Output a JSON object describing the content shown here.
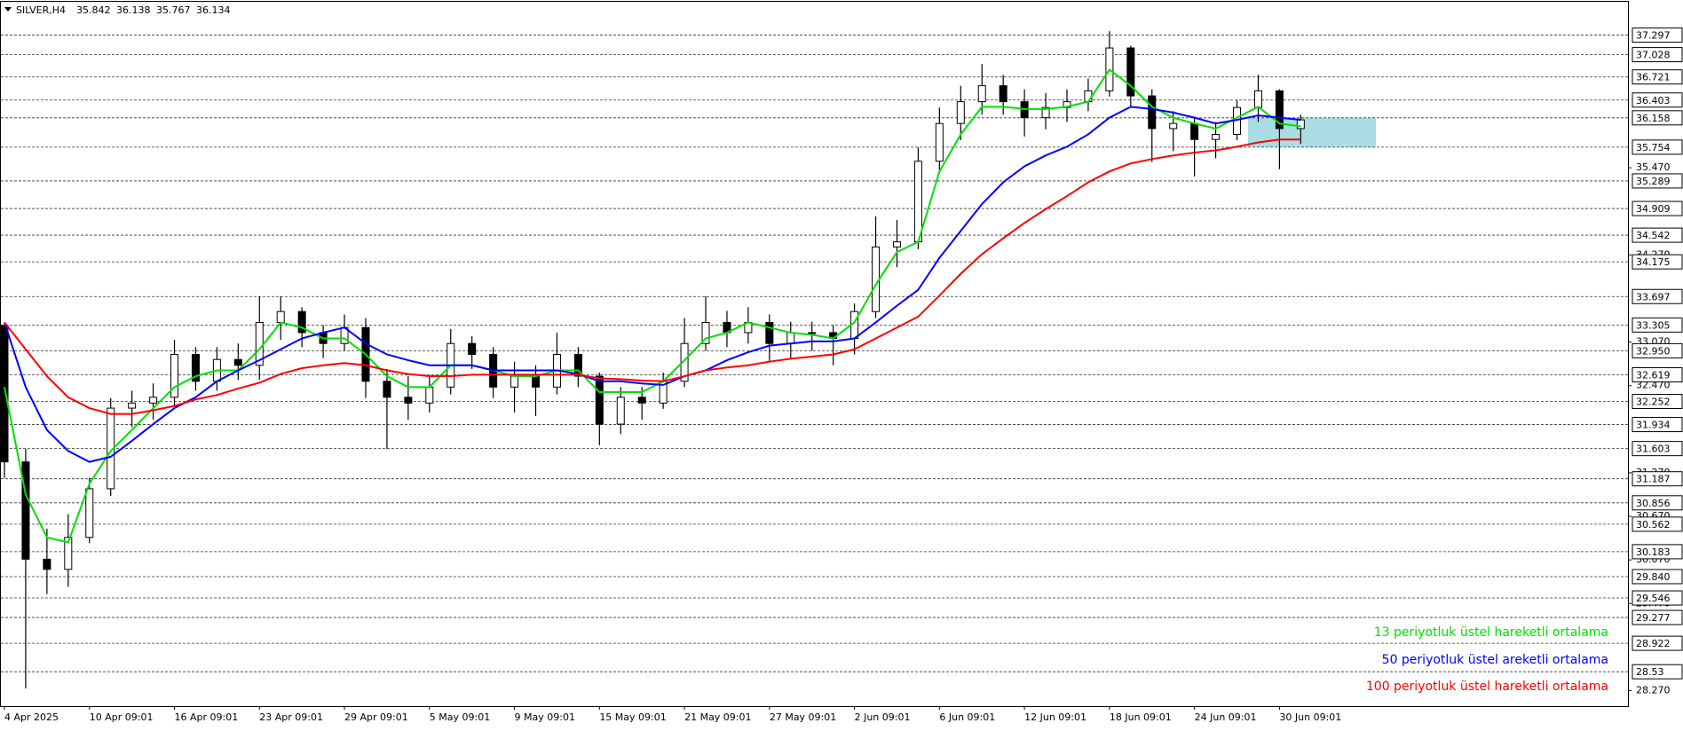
{
  "chart_data": {
    "type": "candlestick",
    "symbol": "SILVER,H4",
    "header_values": [
      35.842,
      36.138,
      35.767,
      36.134
    ],
    "categories": [
      "4 Apr 2025",
      null,
      null,
      null,
      "10 Apr 09:01",
      null,
      null,
      null,
      "16 Apr 09:01",
      null,
      null,
      null,
      "23 Apr 09:01",
      null,
      null,
      null,
      "29 Apr 09:01",
      null,
      null,
      null,
      "5 May 09:01",
      null,
      null,
      null,
      "9 May 09:01",
      null,
      null,
      null,
      "15 May 09:01",
      null,
      null,
      null,
      "21 May 09:01",
      null,
      null,
      null,
      "27 May 09:01",
      null,
      null,
      null,
      "2 Jun 09:01",
      null,
      null,
      null,
      "6 Jun 09:01",
      null,
      null,
      null,
      "12 Jun 09:01",
      null,
      null,
      null,
      "18 Jun 09:01",
      null,
      null,
      null,
      "24 Jun 09:01",
      null,
      null,
      null,
      "30 Jun 09:01",
      null
    ],
    "open": [
      33.3,
      31.42,
      30.08,
      29.94,
      30.38,
      31.05,
      32.16,
      32.23,
      32.31,
      32.9,
      32.53,
      32.83,
      32.75,
      33.34,
      33.49,
      33.2,
      33.05,
      33.27,
      32.53,
      32.31,
      32.23,
      32.45,
      33.05,
      32.9,
      32.45,
      32.6,
      32.45,
      32.9,
      32.6,
      31.94,
      32.31,
      32.23,
      32.53,
      33.05,
      33.34,
      33.2,
      33.34,
      33.05,
      33.2,
      33.2,
      33.12,
      33.49,
      34.38,
      34.45,
      35.56,
      36.08,
      36.38,
      36.6,
      36.38,
      36.16,
      36.3,
      36.38,
      36.53,
      37.12,
      36.46,
      36.01,
      36.08,
      35.86,
      35.93,
      36.3,
      36.53,
      36.01
    ],
    "high": [
      33.3,
      31.6,
      30.5,
      30.7,
      31.2,
      32.3,
      32.4,
      32.5,
      33.1,
      33.0,
      33.0,
      33.05,
      33.7,
      33.7,
      33.55,
      33.3,
      33.45,
      33.4,
      32.7,
      32.6,
      32.6,
      33.25,
      33.15,
      33.0,
      32.8,
      32.75,
      33.2,
      33.0,
      32.65,
      32.45,
      32.45,
      32.65,
      33.4,
      33.7,
      33.5,
      33.55,
      33.45,
      33.35,
      33.35,
      33.3,
      33.6,
      34.8,
      34.75,
      35.75,
      36.3,
      36.6,
      36.9,
      36.75,
      36.55,
      36.5,
      36.55,
      36.7,
      37.35,
      37.15,
      36.55,
      36.25,
      36.15,
      36.1,
      36.4,
      36.75,
      36.55,
      36.2
    ],
    "low": [
      31.2,
      28.3,
      29.6,
      29.7,
      30.3,
      30.95,
      31.9,
      32.0,
      32.2,
      32.4,
      32.4,
      32.55,
      32.55,
      33.1,
      33.0,
      32.85,
      32.95,
      32.3,
      31.6,
      32.0,
      32.1,
      32.35,
      32.7,
      32.3,
      32.1,
      32.05,
      32.35,
      32.45,
      31.65,
      31.8,
      32.0,
      32.15,
      32.45,
      32.95,
      33.0,
      33.05,
      32.8,
      32.85,
      32.95,
      32.75,
      32.9,
      33.4,
      34.1,
      34.35,
      35.4,
      35.85,
      36.2,
      36.2,
      35.9,
      36.0,
      36.1,
      36.25,
      36.45,
      36.3,
      35.55,
      35.7,
      35.35,
      35.6,
      35.85,
      36.1,
      35.45,
      35.8
    ],
    "close": [
      31.42,
      30.08,
      29.94,
      30.38,
      31.05,
      32.16,
      32.23,
      32.31,
      32.9,
      32.53,
      32.83,
      32.75,
      33.34,
      33.49,
      33.2,
      33.05,
      33.27,
      32.53,
      32.31,
      32.23,
      32.45,
      33.05,
      32.9,
      32.45,
      32.6,
      32.45,
      32.9,
      32.6,
      31.94,
      32.31,
      32.23,
      32.53,
      33.05,
      33.34,
      33.2,
      33.34,
      33.05,
      33.2,
      33.2,
      33.12,
      33.49,
      34.38,
      34.45,
      35.56,
      36.08,
      36.38,
      36.6,
      36.38,
      36.16,
      36.3,
      36.38,
      36.53,
      37.12,
      36.46,
      36.01,
      36.08,
      35.86,
      35.93,
      36.3,
      36.53,
      36.01,
      36.13
    ],
    "up_color": "#ffffff",
    "down_color": "#000000",
    "series": [
      {
        "name": "13 periyotluk üstel hareketli ortalama",
        "color": "#00e000",
        "values": [
          32.45,
          30.97,
          30.38,
          30.31,
          31.12,
          31.57,
          31.86,
          32.16,
          32.45,
          32.6,
          32.68,
          32.68,
          32.97,
          33.34,
          33.27,
          33.12,
          33.12,
          32.9,
          32.6,
          32.45,
          32.45,
          32.75,
          32.75,
          32.68,
          32.6,
          32.6,
          32.68,
          32.68,
          32.38,
          32.38,
          32.38,
          32.53,
          32.82,
          33.12,
          33.2,
          33.34,
          33.27,
          33.2,
          33.17,
          33.12,
          33.34,
          33.86,
          34.31,
          34.45,
          35.42,
          35.93,
          36.31,
          36.31,
          36.28,
          36.28,
          36.31,
          36.38,
          36.82,
          36.6,
          36.31,
          36.16,
          36.08,
          36.01,
          36.16,
          36.31,
          36.08,
          36.04
        ]
      },
      {
        "name": "50 periyotluk üstel areketli ortalama",
        "color": "#0000ff",
        "values": [
          33.34,
          32.45,
          31.86,
          31.57,
          31.42,
          31.49,
          31.71,
          31.94,
          32.16,
          32.31,
          32.53,
          32.68,
          32.82,
          32.97,
          33.12,
          33.2,
          33.27,
          33.05,
          32.9,
          32.82,
          32.75,
          32.75,
          32.75,
          32.68,
          32.68,
          32.68,
          32.68,
          32.63,
          32.53,
          32.53,
          32.5,
          32.48,
          32.6,
          32.68,
          32.82,
          32.93,
          33.02,
          33.05,
          33.08,
          33.08,
          33.12,
          33.34,
          33.57,
          33.79,
          34.23,
          34.6,
          34.97,
          35.27,
          35.49,
          35.64,
          35.76,
          35.93,
          36.16,
          36.31,
          36.28,
          36.23,
          36.16,
          36.08,
          36.13,
          36.19,
          36.16,
          36.13
        ]
      },
      {
        "name": "100 periyotluk üstel hareketli ortalama",
        "color": "#ff0000",
        "values": [
          33.34,
          32.97,
          32.6,
          32.31,
          32.16,
          32.08,
          32.08,
          32.13,
          32.19,
          32.28,
          32.34,
          32.43,
          32.51,
          32.63,
          32.71,
          32.75,
          32.78,
          32.75,
          32.68,
          32.63,
          32.6,
          32.6,
          32.62,
          32.62,
          32.62,
          32.62,
          32.62,
          32.62,
          32.57,
          32.56,
          32.54,
          32.53,
          32.6,
          32.68,
          32.72,
          32.75,
          32.8,
          32.84,
          32.87,
          32.9,
          32.97,
          33.12,
          33.27,
          33.42,
          33.71,
          34.01,
          34.28,
          34.5,
          34.71,
          34.9,
          35.08,
          35.27,
          35.42,
          35.53,
          35.59,
          35.64,
          35.68,
          35.71,
          35.76,
          35.82,
          35.86,
          35.86
        ]
      }
    ],
    "ylim": [
      28.056,
      37.756
    ],
    "yticks": [
      {
        "value": 35.47,
        "label": "35.470"
      },
      {
        "value": 34.27,
        "label": "34.270"
      },
      {
        "value": 33.07,
        "label": "33.070"
      },
      {
        "value": 32.47,
        "label": "32.470"
      },
      {
        "value": 31.27,
        "label": "31.270"
      },
      {
        "value": 30.67,
        "label": "30.670"
      },
      {
        "value": 30.07,
        "label": "30.070"
      },
      {
        "value": 29.47,
        "label": "29.470"
      },
      {
        "value": 28.27,
        "label": "28.270"
      }
    ],
    "levels": [
      37.297,
      37.028,
      36.721,
      36.403,
      36.158,
      35.754,
      35.289,
      34.909,
      34.542,
      34.175,
      33.697,
      33.305,
      {
        "value": 32.95,
        "label": "32.950"
      },
      32.619,
      32.252,
      31.934,
      31.603,
      31.187,
      30.856,
      30.562,
      30.183,
      {
        "value": 29.84,
        "label": "29.840"
      },
      29.546,
      29.277,
      28.922,
      28.53
    ],
    "zone": [
      35.754,
      36.158
    ],
    "zone_color": "#a9dde3"
  }
}
